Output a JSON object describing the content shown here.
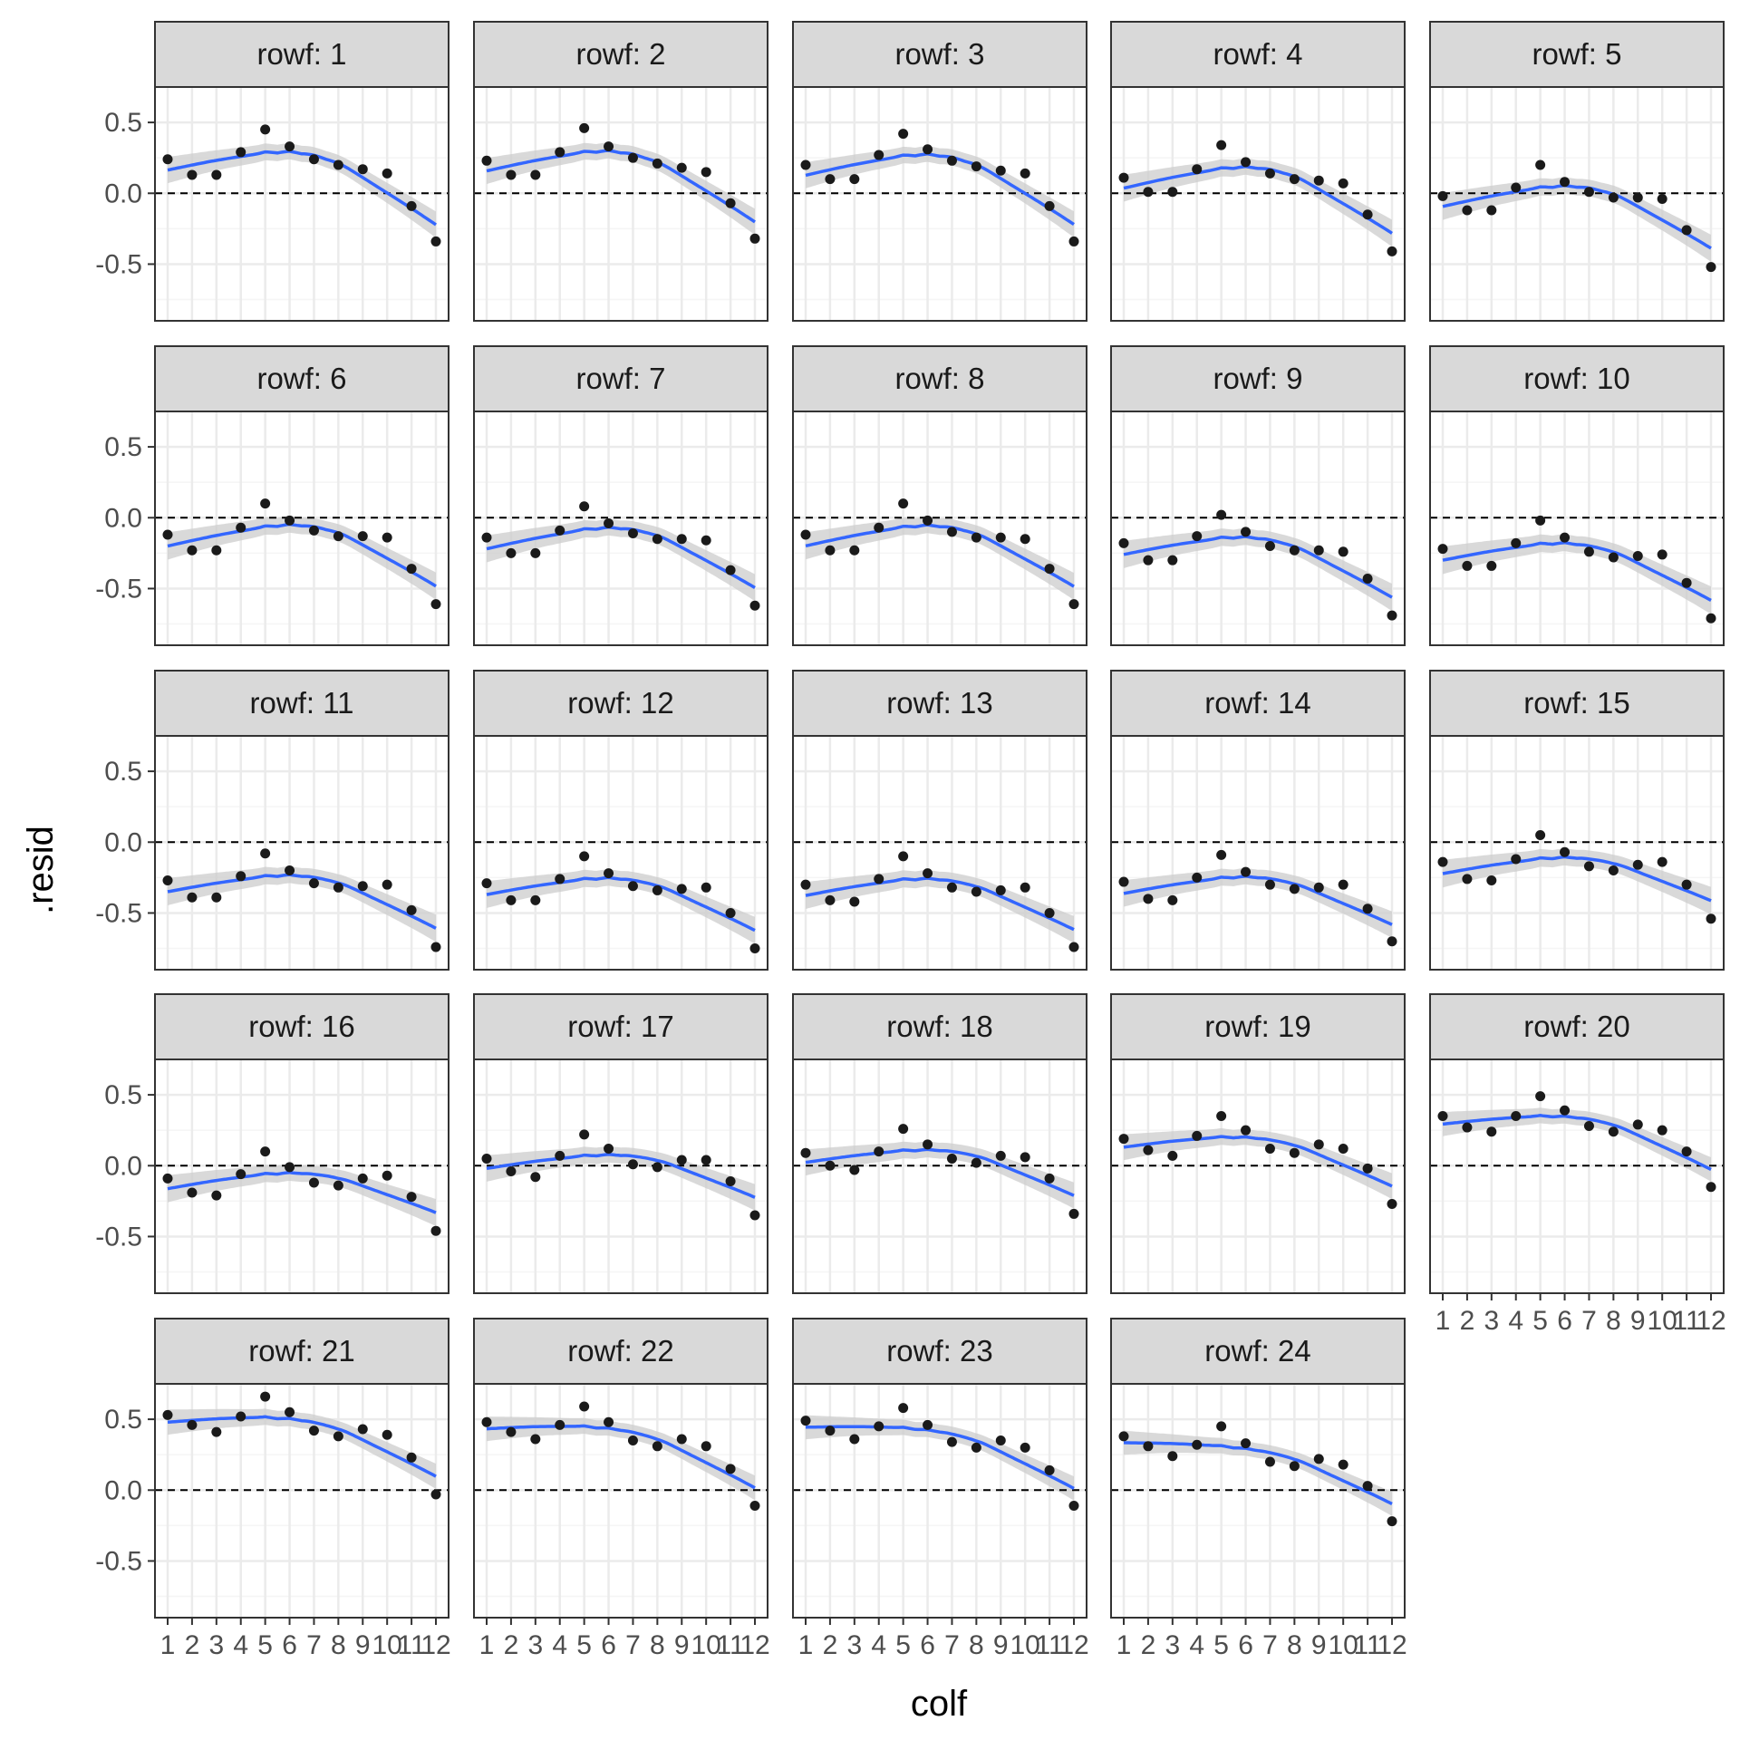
{
  "chart_data": {
    "type": "scatter",
    "facet_variable": "rowf",
    "xlabel": "colf",
    "ylabel": ".resid",
    "x_categories": [
      "1",
      "2",
      "3",
      "4",
      "5",
      "6",
      "7",
      "8",
      "9",
      "10",
      "11",
      "12"
    ],
    "y_ticks": [
      0.5,
      0.0,
      -0.5
    ],
    "y_tick_labels": [
      "0.5",
      "0.0",
      "-0.5"
    ],
    "ylim": [
      -0.9,
      0.75
    ],
    "reference_line": 0,
    "grid": true,
    "smooth_method": "loess",
    "colors": {
      "point": "#1a1a1a",
      "smooth": "#3366ff",
      "ribbon": "#cccccc",
      "strip_fill": "#d9d9d9",
      "border": "#333333",
      "grid_major": "#ebebeb",
      "grid_minor": "#f5f5f5"
    },
    "panels": [
      {
        "label": "rowf: 1",
        "values": [
          0.24,
          0.13,
          0.13,
          0.29,
          0.45,
          0.33,
          0.24,
          0.2,
          0.17,
          0.14,
          -0.09,
          -0.34
        ]
      },
      {
        "label": "rowf: 2",
        "values": [
          0.23,
          0.13,
          0.13,
          0.29,
          0.46,
          0.33,
          0.25,
          0.21,
          0.18,
          0.15,
          -0.07,
          -0.32
        ]
      },
      {
        "label": "rowf: 3",
        "values": [
          0.2,
          0.1,
          0.1,
          0.27,
          0.42,
          0.31,
          0.23,
          0.19,
          0.16,
          0.14,
          -0.09,
          -0.34
        ]
      },
      {
        "label": "rowf: 4",
        "values": [
          0.11,
          0.01,
          0.01,
          0.17,
          0.34,
          0.22,
          0.14,
          0.1,
          0.09,
          0.07,
          -0.15,
          -0.41
        ]
      },
      {
        "label": "rowf: 5",
        "values": [
          -0.02,
          -0.12,
          -0.12,
          0.04,
          0.2,
          0.08,
          0.01,
          -0.03,
          -0.03,
          -0.04,
          -0.26,
          -0.52
        ]
      },
      {
        "label": "rowf: 6",
        "values": [
          -0.12,
          -0.23,
          -0.23,
          -0.07,
          0.1,
          -0.02,
          -0.09,
          -0.13,
          -0.13,
          -0.14,
          -0.36,
          -0.61
        ]
      },
      {
        "label": "rowf: 7",
        "values": [
          -0.14,
          -0.25,
          -0.25,
          -0.09,
          0.08,
          -0.04,
          -0.11,
          -0.15,
          -0.15,
          -0.16,
          -0.37,
          -0.62
        ]
      },
      {
        "label": "rowf: 8",
        "values": [
          -0.12,
          -0.23,
          -0.23,
          -0.07,
          0.1,
          -0.02,
          -0.1,
          -0.14,
          -0.14,
          -0.15,
          -0.36,
          -0.61
        ]
      },
      {
        "label": "rowf: 9",
        "values": [
          -0.18,
          -0.3,
          -0.3,
          -0.13,
          0.02,
          -0.1,
          -0.2,
          -0.23,
          -0.23,
          -0.24,
          -0.43,
          -0.69
        ]
      },
      {
        "label": "rowf: 10",
        "values": [
          -0.22,
          -0.34,
          -0.34,
          -0.18,
          -0.02,
          -0.14,
          -0.24,
          -0.28,
          -0.27,
          -0.26,
          -0.46,
          -0.71
        ]
      },
      {
        "label": "rowf: 11",
        "values": [
          -0.27,
          -0.39,
          -0.39,
          -0.24,
          -0.08,
          -0.2,
          -0.29,
          -0.32,
          -0.31,
          -0.3,
          -0.48,
          -0.74
        ]
      },
      {
        "label": "rowf: 12",
        "values": [
          -0.29,
          -0.41,
          -0.41,
          -0.26,
          -0.1,
          -0.22,
          -0.31,
          -0.34,
          -0.33,
          -0.32,
          -0.5,
          -0.75
        ]
      },
      {
        "label": "rowf: 13",
        "values": [
          -0.3,
          -0.41,
          -0.42,
          -0.26,
          -0.1,
          -0.22,
          -0.32,
          -0.35,
          -0.34,
          -0.32,
          -0.5,
          -0.74
        ]
      },
      {
        "label": "rowf: 14",
        "values": [
          -0.28,
          -0.4,
          -0.41,
          -0.25,
          -0.09,
          -0.21,
          -0.3,
          -0.33,
          -0.32,
          -0.3,
          -0.47,
          -0.7
        ]
      },
      {
        "label": "rowf: 15",
        "values": [
          -0.14,
          -0.26,
          -0.27,
          -0.12,
          0.05,
          -0.07,
          -0.17,
          -0.2,
          -0.16,
          -0.14,
          -0.3,
          -0.54
        ]
      },
      {
        "label": "rowf: 16",
        "values": [
          -0.09,
          -0.19,
          -0.21,
          -0.06,
          0.1,
          -0.01,
          -0.12,
          -0.14,
          -0.09,
          -0.07,
          -0.22,
          -0.46
        ]
      },
      {
        "label": "rowf: 17",
        "values": [
          0.05,
          -0.04,
          -0.08,
          0.07,
          0.22,
          0.12,
          0.01,
          -0.01,
          0.04,
          0.04,
          -0.11,
          -0.35
        ]
      },
      {
        "label": "rowf: 18",
        "values": [
          0.09,
          0.0,
          -0.03,
          0.1,
          0.26,
          0.15,
          0.05,
          0.02,
          0.07,
          0.06,
          -0.09,
          -0.34
        ]
      },
      {
        "label": "rowf: 19",
        "values": [
          0.19,
          0.11,
          0.07,
          0.21,
          0.35,
          0.25,
          0.12,
          0.09,
          0.15,
          0.12,
          -0.02,
          -0.27
        ]
      },
      {
        "label": "rowf: 20",
        "values": [
          0.35,
          0.27,
          0.24,
          0.35,
          0.49,
          0.39,
          0.28,
          0.24,
          0.29,
          0.25,
          0.1,
          -0.15
        ]
      },
      {
        "label": "rowf: 21",
        "values": [
          0.53,
          0.46,
          0.41,
          0.52,
          0.66,
          0.55,
          0.42,
          0.38,
          0.43,
          0.39,
          0.23,
          -0.03
        ]
      },
      {
        "label": "rowf: 22",
        "values": [
          0.48,
          0.41,
          0.36,
          0.46,
          0.59,
          0.48,
          0.35,
          0.31,
          0.36,
          0.31,
          0.15,
          -0.11
        ]
      },
      {
        "label": "rowf: 23",
        "values": [
          0.49,
          0.42,
          0.36,
          0.45,
          0.58,
          0.46,
          0.34,
          0.3,
          0.35,
          0.3,
          0.14,
          -0.11
        ]
      },
      {
        "label": "rowf: 24",
        "values": [
          0.38,
          0.31,
          0.24,
          0.32,
          0.45,
          0.33,
          0.2,
          0.17,
          0.22,
          0.18,
          0.03,
          -0.22
        ]
      }
    ]
  }
}
